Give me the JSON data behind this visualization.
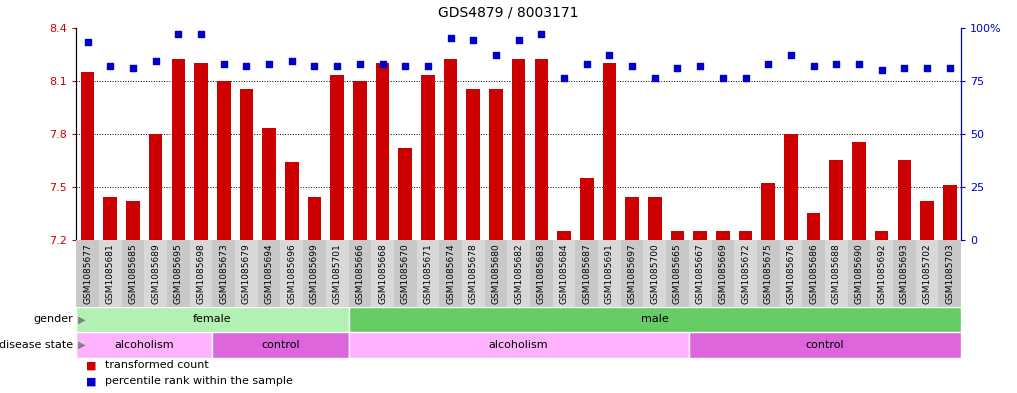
{
  "title": "GDS4879 / 8003171",
  "samples": [
    "GSM1085677",
    "GSM1085681",
    "GSM1085685",
    "GSM1085689",
    "GSM1085695",
    "GSM1085698",
    "GSM1085673",
    "GSM1085679",
    "GSM1085694",
    "GSM1085696",
    "GSM1085699",
    "GSM1085701",
    "GSM1085666",
    "GSM1085668",
    "GSM1085670",
    "GSM1085671",
    "GSM1085674",
    "GSM1085678",
    "GSM1085680",
    "GSM1085682",
    "GSM1085683",
    "GSM1085684",
    "GSM1085687",
    "GSM1085691",
    "GSM1085697",
    "GSM1085700",
    "GSM1085665",
    "GSM1085667",
    "GSM1085669",
    "GSM1085672",
    "GSM1085675",
    "GSM1085676",
    "GSM1085686",
    "GSM1085688",
    "GSM1085690",
    "GSM1085692",
    "GSM1085693",
    "GSM1085702",
    "GSM1085703"
  ],
  "bar_values": [
    8.15,
    7.44,
    7.42,
    7.8,
    8.22,
    8.2,
    8.1,
    8.05,
    7.83,
    7.64,
    7.44,
    8.13,
    8.1,
    8.2,
    7.72,
    8.13,
    8.22,
    8.05,
    8.05,
    8.22,
    8.22,
    7.25,
    7.55,
    8.2,
    7.44,
    7.44,
    7.25,
    7.25,
    7.25,
    7.25,
    7.52,
    7.8,
    7.35,
    7.65,
    7.75,
    7.25,
    7.65,
    7.42,
    7.51
  ],
  "percentile_values": [
    93,
    82,
    81,
    84,
    97,
    97,
    83,
    82,
    83,
    84,
    82,
    82,
    83,
    83,
    82,
    82,
    95,
    94,
    87,
    94,
    97,
    76,
    83,
    87,
    82,
    76,
    81,
    82,
    76,
    76,
    83,
    87,
    82,
    83,
    83,
    80,
    81,
    81,
    81
  ],
  "ylim": [
    7.2,
    8.4
  ],
  "yticks": [
    7.2,
    7.5,
    7.8,
    8.1,
    8.4
  ],
  "right_yticks_pct": [
    0,
    25,
    50,
    75,
    100
  ],
  "right_yticklabels": [
    "0",
    "25",
    "50",
    "75",
    "100%"
  ],
  "bar_color": "#cc0000",
  "dot_color": "#0000cc",
  "gender_regions": [
    {
      "label": "female",
      "start": 0,
      "end": 12,
      "color": "#b3f0b3"
    },
    {
      "label": "male",
      "start": 12,
      "end": 39,
      "color": "#66cc66"
    }
  ],
  "disease_regions": [
    {
      "label": "alcoholism",
      "start": 0,
      "end": 6,
      "color": "#ffb3ff"
    },
    {
      "label": "control",
      "start": 6,
      "end": 12,
      "color": "#dd66dd"
    },
    {
      "label": "alcoholism",
      "start": 12,
      "end": 27,
      "color": "#ffb3ff"
    },
    {
      "label": "control",
      "start": 27,
      "end": 39,
      "color": "#dd66dd"
    }
  ],
  "background_color": "#ffffff"
}
